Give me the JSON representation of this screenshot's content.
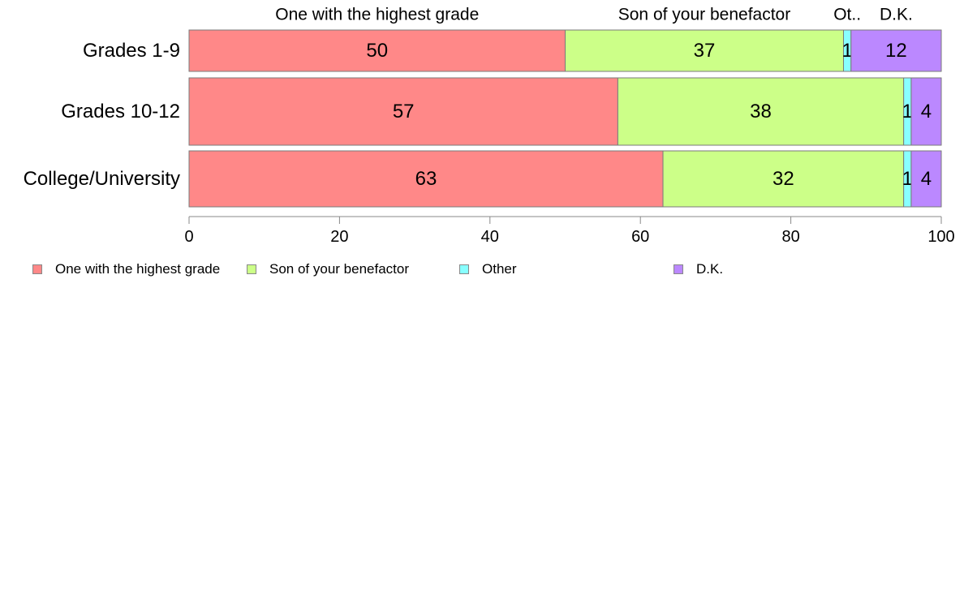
{
  "chart_data": {
    "type": "bar",
    "orientation": "horizontal",
    "stacked": true,
    "categories": [
      "Grades 1-9",
      "Grades 10-12",
      "College/University"
    ],
    "series": [
      {
        "name": "One with the highest grade",
        "values": [
          50,
          57,
          63
        ],
        "color": "#ff8888"
      },
      {
        "name": "Son of your benefactor",
        "values": [
          37,
          38,
          32
        ],
        "color": "#ccff88"
      },
      {
        "name": "Other",
        "values": [
          1,
          1,
          1
        ],
        "color": "#88ffff"
      },
      {
        "name": "D.K.",
        "values": [
          12,
          4,
          4
        ],
        "color": "#bb88ff"
      }
    ],
    "top_labels": [
      "One with the highest grade",
      "Son of your benefactor",
      "Ot..",
      "D.K."
    ],
    "segment_labels": [
      [
        "50",
        "37",
        "1",
        "12"
      ],
      [
        "57",
        "38",
        "1",
        "4"
      ],
      [
        "63",
        "32",
        "1",
        "4"
      ]
    ],
    "xlim": [
      0,
      100
    ],
    "xticks": [
      0,
      20,
      40,
      60,
      80,
      100
    ],
    "grid": false,
    "legend_position": "bottom"
  }
}
